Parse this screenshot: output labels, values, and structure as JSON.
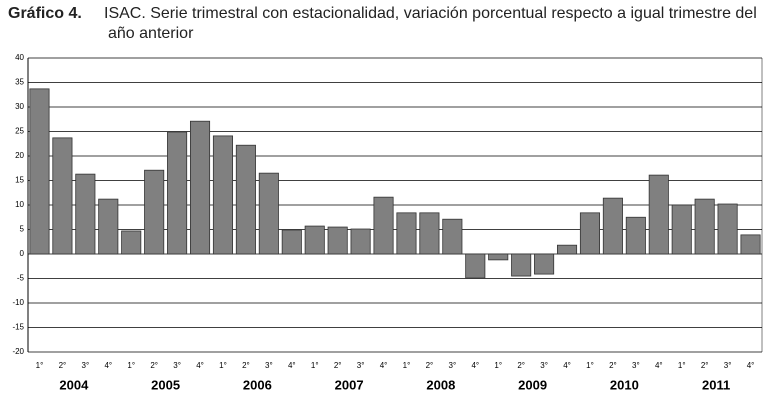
{
  "chart_data": {
    "type": "bar",
    "title_label": "Gráfico 4.",
    "title": "ISAC. Serie trimestral con estacionalidad, variación porcentual respecto a igual trimestre del año anterior",
    "categories": [
      "1°",
      "2°",
      "3°",
      "4°",
      "1°",
      "2°",
      "3°",
      "4°",
      "1°",
      "2°",
      "3°",
      "4°",
      "1°",
      "2°",
      "3°",
      "4°",
      "1°",
      "2°",
      "3°",
      "4°",
      "1°",
      "2°",
      "3°",
      "4°",
      "1°",
      "2°",
      "3°",
      "4°",
      "1°",
      "2°",
      "3°",
      "4°"
    ],
    "groups": [
      "2004",
      "2005",
      "2006",
      "2007",
      "2008",
      "2009",
      "2010",
      "2011"
    ],
    "values": [
      33.7,
      23.7,
      16.3,
      11.2,
      4.7,
      17.1,
      24.9,
      27.1,
      24.1,
      22.2,
      16.5,
      4.9,
      5.7,
      5.5,
      5.1,
      11.6,
      8.4,
      8.4,
      7.1,
      -4.9,
      -1.2,
      -4.5,
      -4.1,
      1.8,
      8.4,
      11.4,
      7.5,
      16.1,
      10,
      11.2,
      10.2,
      3.9
    ],
    "color": "#808080",
    "ylim": [
      -20,
      40
    ],
    "yticks": [
      -20,
      -15,
      -10,
      -5,
      0,
      5,
      10,
      15,
      20,
      25,
      30,
      35,
      40
    ],
    "grid": true
  }
}
